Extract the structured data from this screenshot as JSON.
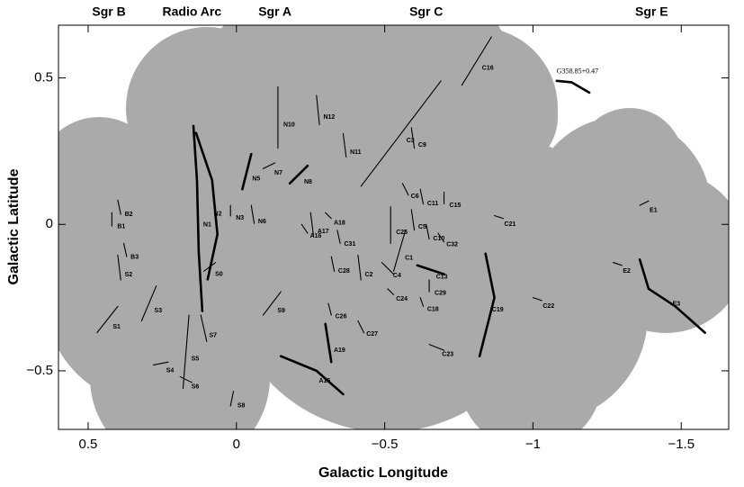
{
  "chart_data": {
    "type": "filaments",
    "xlabel": "Galactic Longitude",
    "ylabel": "Galactic Latitude",
    "xlim": [
      0.6,
      -1.66
    ],
    "ylim": [
      -0.7,
      0.68
    ],
    "xticks": [
      0.5,
      0,
      {
        "value": -0.5,
        "label": "−0.5"
      },
      {
        "value": -1,
        "label": "−1"
      },
      {
        "value": -1.5,
        "label": "−1.5"
      }
    ],
    "yticks": [
      0.5,
      0,
      {
        "value": -0.5,
        "label": "−0.5"
      }
    ],
    "coverage_color": "#aaaaaa",
    "line_color": "#000000",
    "regions": [
      {
        "name": "Sgr B",
        "x": 0.43
      },
      {
        "name": "Radio Arc",
        "x": 0.15
      },
      {
        "name": "Sgr A",
        "x": -0.13
      },
      {
        "name": "Sgr C",
        "x": -0.64
      },
      {
        "name": "Sgr E",
        "x": -1.4
      }
    ],
    "filaments": [
      {
        "name": "C16",
        "x": [
          -0.76,
          -0.86
        ],
        "y": [
          0.475,
          0.64
        ]
      },
      {
        "name": "C3",
        "x": [
          -0.42,
          -0.69
        ],
        "y": [
          0.13,
          0.49
        ]
      },
      {
        "name": "N12",
        "x": [
          -0.27,
          -0.28
        ],
        "y": [
          0.44,
          0.34
        ]
      },
      {
        "name": "N10",
        "x": [
          -0.14,
          -0.14
        ],
        "y": [
          0.47,
          0.26
        ]
      },
      {
        "name": "N11",
        "x": [
          -0.36,
          -0.37
        ],
        "y": [
          0.31,
          0.23
        ]
      },
      {
        "name": "C9",
        "x": [
          -0.59,
          -0.6
        ],
        "y": [
          0.33,
          0.26
        ]
      },
      {
        "name": "N7",
        "x": [
          -0.09,
          -0.13
        ],
        "y": [
          0.19,
          0.21
        ]
      },
      {
        "name": "N8",
        "x": [
          -0.18,
          -0.24
        ],
        "y": [
          0.14,
          0.2
        ],
        "bold": true
      },
      {
        "name": "N5",
        "x": [
          -0.02,
          -0.05
        ],
        "y": [
          0.12,
          0.24
        ],
        "bold": true
      },
      {
        "name": "N2",
        "x": [
          0.136,
          0.082,
          0.064,
          0.097
        ],
        "y": [
          0.312,
          0.151,
          -0.034,
          -0.188
        ],
        "bold": true
      },
      {
        "name": "N1",
        "x": [
          0.145,
          0.133,
          0.127,
          0.115
        ],
        "y": [
          0.336,
          0.151,
          -0.096,
          -0.296
        ],
        "bold": true
      },
      {
        "name": "N3",
        "x": [
          0.02,
          0.02
        ],
        "y": [
          0.065,
          0.028
        ]
      },
      {
        "name": "N6",
        "x": [
          -0.05,
          -0.06
        ],
        "y": [
          0.065,
          0.003
        ]
      },
      {
        "name": "B2",
        "x": [
          0.4,
          0.39
        ],
        "y": [
          0.083,
          0.034
        ]
      },
      {
        "name": "B1",
        "x": [
          0.42,
          0.42
        ],
        "y": [
          0.04,
          -0.006
        ]
      },
      {
        "name": "B3",
        "x": [
          0.38,
          0.37
        ],
        "y": [
          -0.065,
          -0.11
        ]
      },
      {
        "name": "S2",
        "x": [
          0.4,
          0.39
        ],
        "y": [
          -0.105,
          -0.19
        ]
      },
      {
        "name": "S1",
        "x": [
          0.47,
          0.4
        ],
        "y": [
          -0.37,
          -0.28
        ]
      },
      {
        "name": "S3",
        "x": [
          0.32,
          0.27
        ],
        "y": [
          -0.33,
          -0.21
        ]
      },
      {
        "name": "S0",
        "x": [
          0.11,
          0.07
        ],
        "y": [
          -0.16,
          -0.13
        ]
      },
      {
        "name": "S7",
        "x": [
          0.12,
          0.1
        ],
        "y": [
          -0.31,
          -0.4
        ]
      },
      {
        "name": "S5",
        "x": [
          0.16,
          0.18
        ],
        "y": [
          -0.31,
          -0.56
        ]
      },
      {
        "name": "S4",
        "x": [
          0.28,
          0.23
        ],
        "y": [
          -0.48,
          -0.47
        ]
      },
      {
        "name": "S6",
        "x": [
          0.19,
          0.15
        ],
        "y": [
          -0.52,
          -0.54
        ]
      },
      {
        "name": "S8",
        "x": [
          0.01,
          0.02
        ],
        "y": [
          -0.57,
          -0.62
        ]
      },
      {
        "name": "S9",
        "x": [
          -0.09,
          -0.15
        ],
        "y": [
          -0.31,
          -0.23
        ]
      },
      {
        "name": "A15",
        "x": [
          -0.15,
          -0.27,
          -0.36
        ],
        "y": [
          -0.45,
          -0.5,
          -0.58
        ],
        "bold": true
      },
      {
        "name": "A19",
        "x": [
          -0.3,
          -0.32
        ],
        "y": [
          -0.34,
          -0.47
        ],
        "bold": true
      },
      {
        "name": "C26",
        "x": [
          -0.31,
          -0.32
        ],
        "y": [
          -0.27,
          -0.31
        ]
      },
      {
        "name": "C27",
        "x": [
          -0.41,
          -0.43
        ],
        "y": [
          -0.33,
          -0.37
        ]
      },
      {
        "name": "A17",
        "x": [
          -0.25,
          -0.26
        ],
        "y": [
          0.04,
          -0.04
        ]
      },
      {
        "name": "A18",
        "x": [
          -0.3,
          -0.32
        ],
        "y": [
          0.04,
          0.02
        ]
      },
      {
        "name": "A16",
        "x": [
          -0.22,
          -0.24
        ],
        "y": [
          0.0,
          -0.03
        ]
      },
      {
        "name": "C31",
        "x": [
          -0.34,
          -0.35
        ],
        "y": [
          -0.02,
          -0.065
        ]
      },
      {
        "name": "C28",
        "x": [
          -0.32,
          -0.33
        ],
        "y": [
          -0.11,
          -0.16
        ]
      },
      {
        "name": "C2",
        "x": [
          -0.41,
          -0.42
        ],
        "y": [
          -0.105,
          -0.19
        ]
      },
      {
        "name": "C25",
        "x": [
          -0.52,
          -0.52
        ],
        "y": [
          0.06,
          -0.065
        ]
      },
      {
        "name": "C5",
        "x": [
          -0.59,
          -0.6
        ],
        "y": [
          0.05,
          -0.02
        ]
      },
      {
        "name": "C1",
        "x": [
          -0.53,
          -0.57
        ],
        "y": [
          -0.16,
          -0.02
        ]
      },
      {
        "name": "C4",
        "x": [
          -0.49,
          -0.53
        ],
        "y": [
          -0.13,
          -0.17
        ]
      },
      {
        "name": "C6",
        "x": [
          -0.56,
          -0.58
        ],
        "y": [
          0.14,
          0.1
        ]
      },
      {
        "name": "C11",
        "x": [
          -0.62,
          -0.63
        ],
        "y": [
          0.12,
          0.07
        ]
      },
      {
        "name": "C15",
        "x": [
          -0.7,
          -0.7
        ],
        "y": [
          0.11,
          0.07
        ]
      },
      {
        "name": "C10",
        "x": [
          -0.64,
          -0.65
        ],
        "y": [
          0.0,
          -0.05
        ]
      },
      {
        "name": "C32",
        "x": [
          -0.68,
          -0.7
        ],
        "y": [
          -0.03,
          -0.06
        ]
      },
      {
        "name": "C13",
        "x": [
          -0.61,
          -0.7
        ],
        "y": [
          -0.14,
          -0.17
        ],
        "bold": true
      },
      {
        "name": "C29",
        "x": [
          -0.65,
          -0.65
        ],
        "y": [
          -0.19,
          -0.23
        ]
      },
      {
        "name": "C24",
        "x": [
          -0.51,
          -0.53
        ],
        "y": [
          -0.22,
          -0.24
        ]
      },
      {
        "name": "C18",
        "x": [
          -0.62,
          -0.63
        ],
        "y": [
          -0.25,
          -0.28
        ]
      },
      {
        "name": "C19",
        "x": [
          -0.84,
          -0.87,
          -0.82
        ],
        "y": [
          -0.1,
          -0.25,
          -0.45
        ],
        "bold": true
      },
      {
        "name": "C23",
        "x": [
          -0.65,
          -0.7
        ],
        "y": [
          -0.41,
          -0.43
        ]
      },
      {
        "name": "C21",
        "x": [
          -0.87,
          -0.9
        ],
        "y": [
          0.03,
          0.02
        ]
      },
      {
        "name": "C22",
        "x": [
          -1.0,
          -1.03
        ],
        "y": [
          -0.25,
          -0.26
        ]
      },
      {
        "name": "E1",
        "x": [
          -1.36,
          -1.39
        ],
        "y": [
          0.065,
          0.08
        ]
      },
      {
        "name": "E2",
        "x": [
          -1.27,
          -1.3
        ],
        "y": [
          -0.13,
          -0.14
        ]
      },
      {
        "name": "E3",
        "x": [
          -1.36,
          -1.39,
          -1.48,
          -1.58
        ],
        "y": [
          -0.12,
          -0.22,
          -0.28,
          -0.37
        ],
        "bold": true
      },
      {
        "name": "G358.85+0.47",
        "x": [
          -1.08,
          -1.13,
          -1.19
        ],
        "y": [
          0.49,
          0.485,
          0.45
        ],
        "bold": true
      }
    ]
  }
}
